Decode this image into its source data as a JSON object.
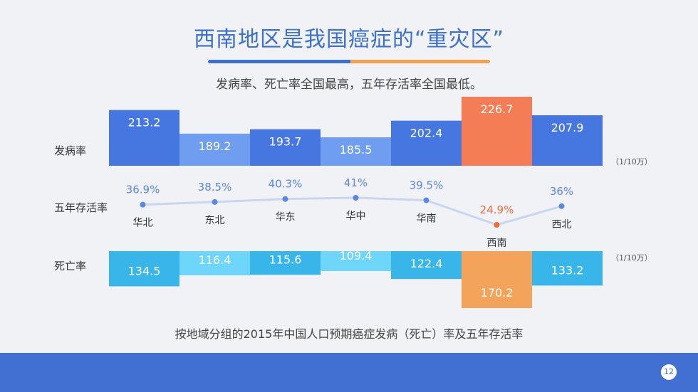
{
  "title": "西南地区是我国癌症的“重灾区”",
  "subtitle": "发病率、死亡率全国最高，五年存活率全国最低。",
  "caption": "按地域分组的2015年中国人口预期癌症发病（死亡）率及五年存活率",
  "page_number": "12",
  "colors": {
    "incidence_dark": "#4677e0",
    "incidence_light": "#6f9df0",
    "highlight": "#f57d56",
    "mortality_dark": "#38b6e9",
    "mortality_light": "#6ed6fb",
    "mortality_highlight": "#f3a45a",
    "survival_line": "#c9d6ef",
    "survival_point": "#5b86e3",
    "survival_label": "#5b86e3",
    "survival_highlight": "#ef6c3c"
  },
  "chart_data": {
    "type": "bar",
    "categories": [
      "华北",
      "东北",
      "华东",
      "华中",
      "华南",
      "西南",
      "西北"
    ],
    "incidence": {
      "label": "发病率",
      "unit": "（1/10万）",
      "values": [
        213.2,
        189.2,
        193.7,
        185.5,
        202.4,
        226.7,
        207.9
      ],
      "labels": [
        "213.2",
        "189.2",
        "193.7",
        "185.5",
        "202.4",
        "226.7",
        "207.9"
      ],
      "shades": [
        "dark",
        "light",
        "dark",
        "light",
        "dark",
        "highlight",
        "dark"
      ]
    },
    "survival": {
      "type": "line",
      "label": "五年存活率",
      "values": [
        36.9,
        38.5,
        40.3,
        41,
        39.5,
        24.9,
        36
      ],
      "labels": [
        "36.9%",
        "38.5%",
        "40.3%",
        "41%",
        "39.5%",
        "24.9%",
        "36%"
      ],
      "highlight_index": 5
    },
    "mortality": {
      "label": "死亡率",
      "unit": "（1/10万）",
      "values": [
        134.5,
        116.4,
        115.6,
        109.4,
        122.4,
        170.2,
        133.2
      ],
      "labels": [
        "134.5",
        "116.4",
        "115.6",
        "109.4",
        "122.4",
        "170.2",
        "133.2"
      ],
      "shades": [
        "dark",
        "light",
        "dark",
        "light",
        "dark",
        "highlight",
        "dark"
      ]
    }
  }
}
